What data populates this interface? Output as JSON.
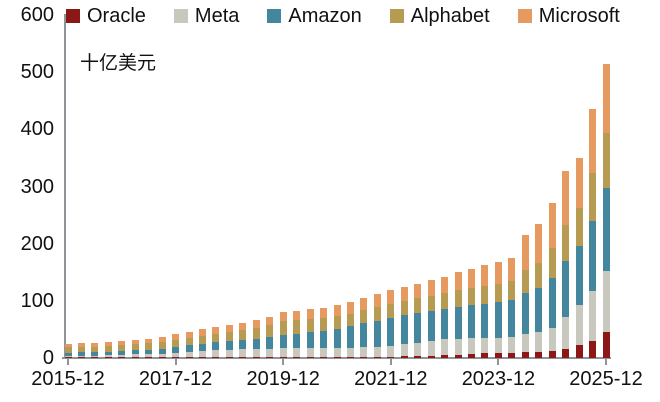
{
  "chart_data": {
    "type": "bar",
    "stacked": true,
    "unit_label": "十亿美元",
    "grid": false,
    "legend_position": "top",
    "ylim": [
      0,
      600
    ],
    "y_ticks": [
      0,
      100,
      200,
      300,
      400,
      500,
      600
    ],
    "x_tick_indices": [
      0,
      8,
      16,
      24,
      32,
      40
    ],
    "x_tick_labels": [
      "2015-12",
      "2017-12",
      "2019-12",
      "2021-12",
      "2023-12",
      "2025-12"
    ],
    "categories": [
      "2015-12",
      "2016-03",
      "2016-06",
      "2016-09",
      "2016-12",
      "2017-03",
      "2017-06",
      "2017-09",
      "2017-12",
      "2018-03",
      "2018-06",
      "2018-09",
      "2018-12",
      "2019-03",
      "2019-06",
      "2019-09",
      "2019-12",
      "2020-03",
      "2020-06",
      "2020-09",
      "2020-12",
      "2021-03",
      "2021-06",
      "2021-09",
      "2021-12",
      "2022-03",
      "2022-06",
      "2022-09",
      "2022-12",
      "2023-03",
      "2023-06",
      "2023-09",
      "2023-12",
      "2024-03",
      "2024-06",
      "2024-09",
      "2024-12",
      "2025-03",
      "2025-06",
      "2025-09",
      "2025-12"
    ],
    "series": [
      {
        "name": "Oracle",
        "color": "#8B1717",
        "values": [
          1,
          1,
          1.1,
          1.1,
          1.2,
          1.4,
          1.6,
          1.8,
          2,
          1.9,
          1.9,
          1.8,
          1.7,
          1.7,
          1.7,
          1.7,
          1.7,
          1.6,
          1.6,
          1.6,
          1.6,
          1.7,
          1.8,
          1.9,
          2.1,
          2.8,
          3.5,
          4.2,
          5,
          6,
          7,
          8,
          8.7,
          9,
          10,
          11,
          13,
          16,
          22,
          30,
          46
        ]
      },
      {
        "name": "Meta",
        "color": "#C9C8BE",
        "values": [
          2.5,
          2.9,
          3.3,
          3.8,
          4.5,
          5,
          5.4,
          6,
          6.7,
          8.3,
          9.9,
          11.5,
          12.8,
          13.4,
          13.9,
          14.5,
          15.1,
          15.2,
          15.4,
          15.5,
          15.7,
          16.4,
          17.1,
          17.8,
          18.6,
          21,
          23.5,
          26,
          28.5,
          28,
          27.6,
          27.2,
          27,
          28.5,
          32,
          35,
          39,
          55,
          70,
          88,
          107
        ]
      },
      {
        "name": "Amazon",
        "color": "#44869E",
        "values": [
          5.5,
          5.8,
          6.1,
          6.4,
          6.7,
          7.2,
          7.8,
          8.8,
          10.5,
          12,
          13.2,
          14.4,
          15.3,
          16.4,
          17.8,
          19.8,
          24,
          26,
          28.3,
          31,
          33.9,
          37.5,
          41.7,
          45.9,
          49.8,
          51,
          51.8,
          52.4,
          53,
          56,
          58,
          60,
          62,
          64,
          72,
          76,
          88,
          98,
          104,
          122,
          145
        ]
      },
      {
        "name": "Alphabet",
        "color": "#B79B52",
        "values": [
          9.5,
          9.6,
          9.6,
          9.5,
          9.7,
          10.2,
          10.8,
          11.7,
          13.2,
          13.4,
          13.8,
          14.3,
          15.2,
          16.8,
          18.4,
          21.3,
          24.7,
          23.9,
          22.7,
          22,
          21.8,
          22.1,
          22.7,
          23.3,
          24,
          24.7,
          25.7,
          26.7,
          27.7,
          28.6,
          29.5,
          30.4,
          31.3,
          33.5,
          40,
          45,
          52,
          64,
          66,
          83,
          95
        ]
      },
      {
        "name": "Microsoft",
        "color": "#E79A60",
        "values": [
          6.5,
          6.7,
          6.9,
          7.2,
          7.9,
          8.2,
          8.4,
          8.7,
          9.6,
          10.4,
          11.2,
          12,
          13,
          13.7,
          14.2,
          14.7,
          15.5,
          16.3,
          17,
          17.9,
          19,
          20.3,
          21.7,
          23.1,
          24.5,
          24.5,
          25.5,
          26.7,
          27.8,
          31.4,
          33.9,
          36.4,
          39,
          40,
          61,
          68,
          80,
          94,
          88,
          112,
          122
        ]
      }
    ]
  }
}
